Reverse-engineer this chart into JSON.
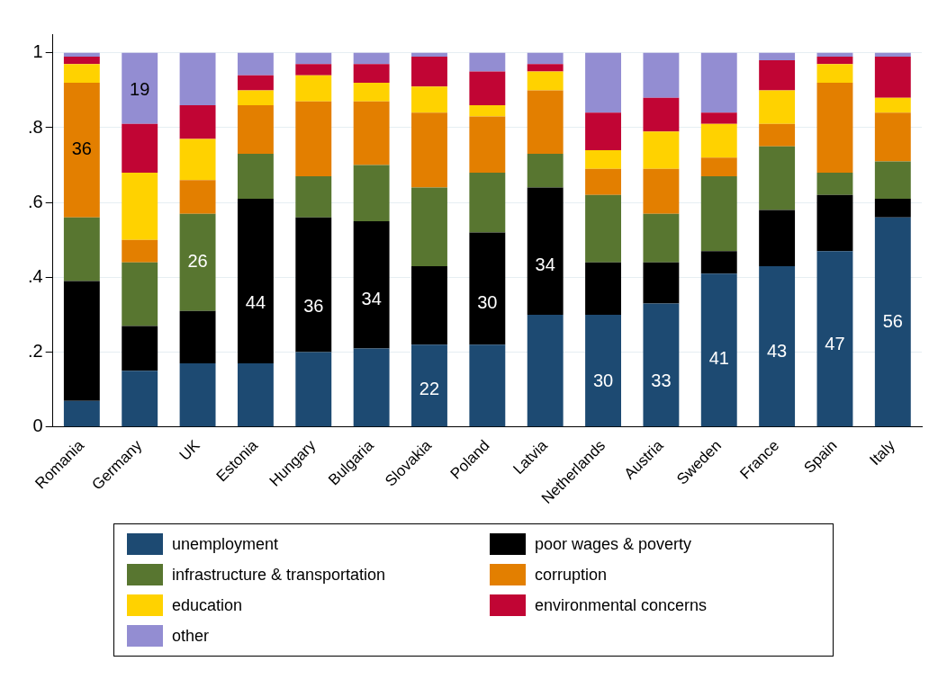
{
  "chart_data": {
    "type": "bar",
    "stacked": true,
    "categories": [
      "Romania",
      "Germany",
      "UK",
      "Estonia",
      "Hungary",
      "Bulgaria",
      "Slovakia",
      "Poland",
      "Latvia",
      "Netherlands",
      "Austria",
      "Sweden",
      "France",
      "Spain",
      "Italy"
    ],
    "ylim": [
      0,
      1.05
    ],
    "yticks": [
      0,
      {
        "value": 0.2,
        "label": ".2"
      },
      {
        "value": 0.4,
        "label": ".4"
      },
      {
        "value": 0.6,
        "label": ".6"
      },
      {
        "value": 0.8,
        "label": ".8"
      },
      1
    ],
    "grid": "y",
    "legend": "bottom",
    "series": [
      {
        "name": "unemployment",
        "color": "#1d4a72",
        "values": [
          0.07,
          0.15,
          0.17,
          0.17,
          0.2,
          0.21,
          0.22,
          0.22,
          0.3,
          0.3,
          0.33,
          0.41,
          0.43,
          0.47,
          0.56
        ]
      },
      {
        "name": "poor wages & poverty",
        "color": "#000000",
        "values": [
          0.32,
          0.12,
          0.14,
          0.44,
          0.36,
          0.34,
          0.21,
          0.3,
          0.34,
          0.14,
          0.11,
          0.06,
          0.15,
          0.15,
          0.05
        ]
      },
      {
        "name": "infrastructure & transportation",
        "color": "#587630",
        "values": [
          0.17,
          0.17,
          0.26,
          0.12,
          0.11,
          0.15,
          0.21,
          0.16,
          0.09,
          0.18,
          0.13,
          0.2,
          0.17,
          0.06,
          0.1
        ]
      },
      {
        "name": "corruption",
        "color": "#e37f00",
        "values": [
          0.36,
          0.06,
          0.09,
          0.13,
          0.2,
          0.17,
          0.2,
          0.15,
          0.17,
          0.07,
          0.12,
          0.05,
          0.06,
          0.24,
          0.13
        ]
      },
      {
        "name": "education",
        "color": "#ffd200",
        "values": [
          0.05,
          0.18,
          0.11,
          0.04,
          0.07,
          0.05,
          0.07,
          0.03,
          0.05,
          0.05,
          0.1,
          0.09,
          0.09,
          0.05,
          0.04
        ]
      },
      {
        "name": "environmental concerns",
        "color": "#c10534",
        "values": [
          0.02,
          0.13,
          0.09,
          0.04,
          0.03,
          0.05,
          0.08,
          0.09,
          0.02,
          0.1,
          0.09,
          0.03,
          0.08,
          0.02,
          0.11
        ]
      },
      {
        "name": "other",
        "color": "#938dd2",
        "values": [
          0.01,
          0.19,
          0.14,
          0.06,
          0.03,
          0.03,
          0.01,
          0.05,
          0.03,
          0.16,
          0.12,
          0.16,
          0.02,
          0.01,
          0.01
        ]
      }
    ],
    "annotations": [
      {
        "text": "36",
        "x": "Romania",
        "y": 0.74
      },
      {
        "text": "19",
        "x": "Germany",
        "y": 0.9
      },
      {
        "text": "26",
        "x": "UK",
        "y": 0.44
      },
      {
        "text": "44",
        "x": "Estonia",
        "y": 0.33
      },
      {
        "text": "36",
        "x": "Hungary",
        "y": 0.32
      },
      {
        "text": "34",
        "x": "Bulgaria",
        "y": 0.34
      },
      {
        "text": "22",
        "x": "Slovakia",
        "y": 0.1
      },
      {
        "text": "30",
        "x": "Poland",
        "y": 0.33
      },
      {
        "text": "34",
        "x": "Latvia",
        "y": 0.43
      },
      {
        "text": "30",
        "x": "Netherlands",
        "y": 0.12
      },
      {
        "text": "33",
        "x": "Austria",
        "y": 0.12
      },
      {
        "text": "41",
        "x": "Sweden",
        "y": 0.18
      },
      {
        "text": "43",
        "x": "France",
        "y": 0.2
      },
      {
        "text": "47",
        "x": "Spain",
        "y": 0.22
      },
      {
        "text": "56",
        "x": "Italy",
        "y": 0.28
      }
    ]
  }
}
